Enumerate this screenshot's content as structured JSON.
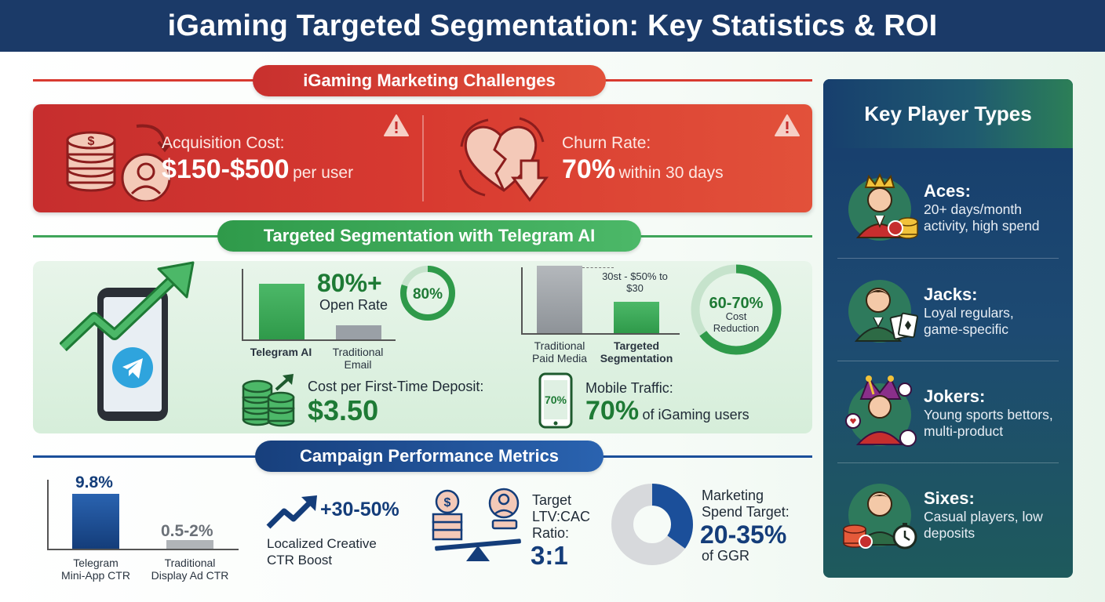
{
  "title": "iGaming Targeted Segmentation: Key Statistics & ROI",
  "colors": {
    "header_bg": "#1b3a68",
    "red": "#d83a30",
    "green": "#2f9a4a",
    "blue": "#1b4f9a"
  },
  "challenges": {
    "section_title": "iGaming Marketing Challenges",
    "acquisition": {
      "label": "Acquisition Cost:",
      "value": "$150-$500",
      "suffix": "per user",
      "icon": "coins-user-icon"
    },
    "churn": {
      "label": "Churn Rate:",
      "value": "70%",
      "suffix": "within 30 days",
      "icon": "broken-heart-icon"
    },
    "warning_icon": "warning-icon"
  },
  "segmentation": {
    "section_title": "Targeted Segmentation with Telegram AI",
    "open_rate": {
      "value": "80%+",
      "label": "Open Rate",
      "ring_label": "80%",
      "ring_fraction": 0.8,
      "bars": [
        {
          "label": "Telegram AI",
          "fraction": 0.8
        },
        {
          "label": "Traditional Email",
          "fraction": 0.2
        }
      ]
    },
    "cost": {
      "annotation": "30st - $50% to $30",
      "ring_value": "60-70%",
      "ring_label": "Cost Reduction",
      "ring_fraction": 0.65,
      "bars": [
        {
          "label": "Traditional Paid Media",
          "fraction": 1.0
        },
        {
          "label": "Targeted Segmentation",
          "fraction": 0.5
        }
      ]
    },
    "deposit": {
      "label": "Cost per First-Time Deposit:",
      "value": "$3.50"
    },
    "mobile": {
      "label": "Mobile Traffic:",
      "value": "70%",
      "suffix": "of iGaming users",
      "phone_label": "70%"
    }
  },
  "metrics": {
    "section_title": "Campaign Performance Metrics",
    "ctr": {
      "telegram": {
        "value": "9.8%",
        "label_line1": "Telegram",
        "label_line2": "Mini-App CTR",
        "number": 9.8
      },
      "traditional": {
        "value": "0.5-2%",
        "label_line1": "Traditional",
        "label_line2": "Display Ad CTR",
        "number": 1.25
      }
    },
    "creative": {
      "value": "+30-50%",
      "label_line1": "Localized Creative",
      "label_line2": "CTR Boost"
    },
    "ltv": {
      "label_line1": "Target",
      "label_line2": "LTV:CAC",
      "label_line3": "Ratio:",
      "value": "3:1"
    },
    "spend": {
      "label_line1": "Marketing",
      "label_line2": "Spend Target:",
      "value": "20-35%",
      "suffix": "of GGR",
      "donut_fraction": 0.35
    }
  },
  "players": {
    "title": "Key Player Types",
    "items": [
      {
        "name": "Aces:",
        "desc_line1": "20+ days/month",
        "desc_line2": "activity, high spend",
        "icon": "crowned-player-icon"
      },
      {
        "name": "Jacks:",
        "desc_line1": "Loyal regulars,",
        "desc_line2": "game-specific",
        "icon": "card-player-icon"
      },
      {
        "name": "Jokers:",
        "desc_line1": "Young sports bettors,",
        "desc_line2": "multi-product",
        "icon": "jester-icon"
      },
      {
        "name": "Sixes:",
        "desc_line1": "Casual players, low",
        "desc_line2": "deposits",
        "icon": "casual-player-icon"
      }
    ]
  }
}
